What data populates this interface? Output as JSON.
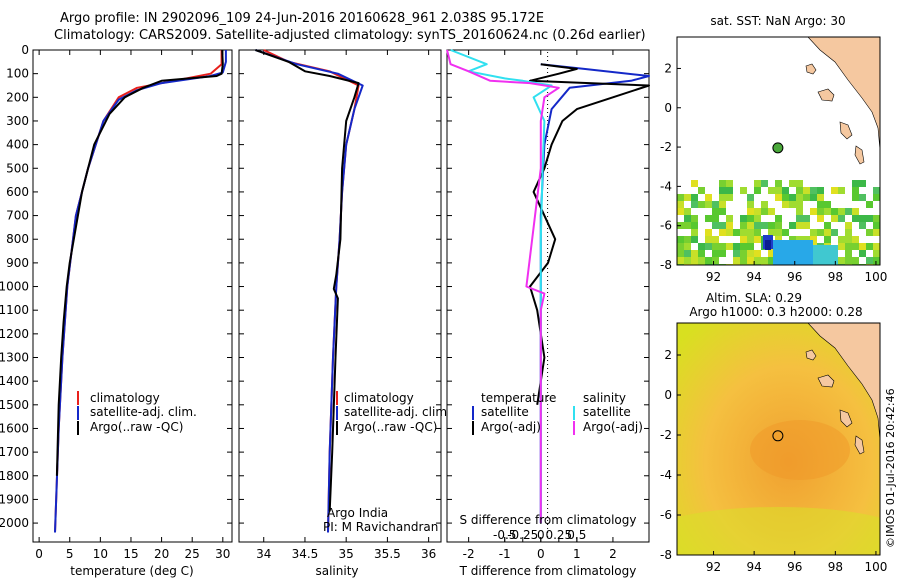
{
  "header": {
    "line1": "Argo profile: IN 2902096_109 24-Jun-2016 20160628_961 2.038S 95.172E",
    "line2": "Climatology: CARS2009. Satellite-adjusted climatology: synTS_20160624.nc (0.26d earlier)"
  },
  "footer_credit": "©IMOS 01-Jul-2016 20:42:46",
  "colors": {
    "climatology": "#e8201c",
    "satellite": "#1428c8",
    "argo": "#000000",
    "sal_satellite": "#30e0f0",
    "sal_argo": "#f030f0",
    "land": "#f5c8a0",
    "ocean_blank": "#ffffff"
  },
  "chart_data": [
    {
      "id": "temperature",
      "type": "line",
      "xlabel": "temperature (deg C)",
      "ylabel": "",
      "xlim": [
        -1,
        31.5
      ],
      "ylim": [
        2080,
        0
      ],
      "xticks": [
        0,
        5,
        10,
        15,
        20,
        25,
        30
      ],
      "yticks": [
        0,
        100,
        200,
        300,
        400,
        500,
        600,
        700,
        800,
        900,
        1000,
        1100,
        1200,
        1300,
        1400,
        1500,
        1600,
        1700,
        1800,
        1900,
        2000
      ],
      "legend": [
        "climatology",
        "satellite-adj. clim.",
        "Argo(..raw -QC)"
      ],
      "series": [
        {
          "name": "climatology",
          "color": "climatology",
          "x": [
            29.8,
            29.8,
            28,
            22,
            16,
            13,
            10.5,
            8,
            6,
            4.6,
            3.8,
            3.2,
            2.6
          ],
          "y": [
            0,
            60,
            100,
            130,
            160,
            200,
            300,
            500,
            700,
            1000,
            1300,
            1600,
            2040
          ]
        },
        {
          "name": "satellite-adj. clim.",
          "color": "satellite",
          "x": [
            30.5,
            30.5,
            30,
            28,
            20,
            16,
            13,
            10.5,
            8,
            6,
            4.6,
            3.8,
            3.2,
            2.6
          ],
          "y": [
            0,
            50,
            95,
            110,
            140,
            170,
            210,
            300,
            500,
            700,
            1000,
            1300,
            1600,
            2040
          ]
        },
        {
          "name": "Argo(..raw -QC)",
          "color": "argo",
          "x": [
            29.9,
            30,
            29.8,
            29,
            20,
            17,
            14,
            11.5,
            9,
            7,
            5,
            4.5,
            4,
            3.6,
            3.2,
            2.9
          ],
          "y": [
            0,
            60,
            100,
            110,
            130,
            160,
            200,
            270,
            400,
            600,
            900,
            1000,
            1150,
            1300,
            1500,
            1800
          ]
        }
      ]
    },
    {
      "id": "salinity",
      "type": "line",
      "xlabel": "salinity",
      "ylabel": "",
      "xlim": [
        33.7,
        36.15
      ],
      "ylim": [
        2080,
        0
      ],
      "xticks": [
        34,
        34.5,
        35,
        35.5,
        36
      ],
      "legend": [
        "climatology",
        "satellite-adj. clim.",
        "Argo(..raw -QC)"
      ],
      "annotations": [
        "Argo India",
        "PI: M Ravichandran"
      ],
      "series": [
        {
          "name": "climatology",
          "color": "climatology",
          "x": [
            34.0,
            34.3,
            34.8,
            35.15,
            35.1,
            35.0,
            34.95,
            34.92,
            34.88,
            34.84,
            34.8,
            34.78
          ],
          "y": [
            0,
            50,
            90,
            150,
            250,
            400,
            600,
            800,
            1000,
            1300,
            1700,
            2040
          ]
        },
        {
          "name": "satellite-adj. clim.",
          "color": "satellite",
          "x": [
            33.9,
            34.4,
            34.9,
            35.2,
            35.1,
            35.0,
            34.95,
            34.92,
            34.88,
            34.84,
            34.8,
            34.78
          ],
          "y": [
            0,
            60,
            100,
            150,
            250,
            400,
            600,
            800,
            1000,
            1300,
            1700,
            2040
          ]
        },
        {
          "name": "Argo(..raw -QC)",
          "color": "argo",
          "x": [
            33.9,
            34.3,
            34.5,
            34.8,
            35.15,
            35.1,
            35.0,
            34.95,
            34.93,
            34.88,
            34.85,
            34.9,
            34.87,
            34.83,
            34.8
          ],
          "y": [
            0,
            50,
            90,
            110,
            140,
            200,
            300,
            500,
            800,
            950,
            1010,
            1050,
            1300,
            1700,
            1950
          ]
        }
      ]
    },
    {
      "id": "difference",
      "type": "line",
      "xlabel": "T difference from climatology",
      "xlabel_top": "S difference from climatology",
      "ylabel": "",
      "xlim": [
        -2.6,
        3
      ],
      "ylim": [
        2080,
        0
      ],
      "xticks": [
        -2,
        -1,
        0,
        1,
        2
      ],
      "top_ticks": [
        "-0.5",
        "-0.25",
        "0",
        "0.25",
        "0.5"
      ],
      "legend": {
        "temperature": "temperature",
        "t_sat": "satellite",
        "t_argo": "Argo(-adj)",
        "salinity": "salinity",
        "s_sat": "satellite",
        "s_argo": "Argo(-adj)"
      },
      "series": [
        {
          "name": "satellite",
          "color": "satellite",
          "x": [
            0,
            1.2,
            3,
            2.5,
            0.8,
            0.3,
            0.1,
            0,
            0,
            0
          ],
          "y": [
            60,
            80,
            110,
            130,
            160,
            250,
            400,
            700,
            1200,
            2000
          ]
        },
        {
          "name": "Argo(-adj)",
          "color": "argo",
          "x": [
            0,
            0.5,
            1.0,
            0.5,
            -0.3,
            3.0,
            2.0,
            1.0,
            0.6,
            0.3,
            0.1,
            -0.2,
            0.1,
            0.4,
            0.2,
            -0.3,
            -0.1,
            0.1,
            -0.1
          ],
          "y": [
            60,
            70,
            80,
            100,
            130,
            150,
            200,
            250,
            300,
            400,
            500,
            600,
            700,
            800,
            900,
            1000,
            1100,
            1300,
            1500
          ]
        },
        {
          "name": "satellite",
          "color": "sal_satellite",
          "x": [
            -2.5,
            -1.5,
            -2,
            -1,
            -0.5,
            0.3,
            -0.2,
            0.1,
            0.05,
            0,
            0,
            0
          ],
          "y": [
            0,
            60,
            90,
            120,
            130,
            150,
            200,
            300,
            500,
            800,
            1200,
            2000
          ]
        },
        {
          "name": "Argo(-adj)",
          "color": "sal_argo",
          "x": [
            -2.6,
            -2.5,
            -2,
            -1.4,
            -0.3,
            0.5,
            0.1,
            0,
            0,
            -0.4,
            0.1,
            0,
            0
          ],
          "y": [
            0,
            60,
            90,
            130,
            140,
            160,
            200,
            300,
            500,
            1000,
            1030,
            1100,
            2000
          ]
        }
      ]
    },
    {
      "id": "sst_map",
      "type": "heatmap",
      "title": "sat. SST: NaN Argo: 30",
      "xlim": [
        90.2,
        100.2
      ],
      "ylim": [
        -8,
        3.6
      ],
      "xticks": [
        92,
        94,
        96,
        98,
        100
      ],
      "yticks": [
        2,
        0,
        -2,
        -4,
        -6,
        -8
      ],
      "argo_point": [
        95.17,
        -2.04
      ]
    },
    {
      "id": "sla_map",
      "type": "heatmap",
      "title_lines": [
        "Altim. SLA: 0.29",
        "Argo h1000: 0.3 h2000: 0.28"
      ],
      "xlim": [
        90.2,
        100.2
      ],
      "ylim": [
        -8,
        3.6
      ],
      "xticks": [
        92,
        94,
        96,
        98,
        100
      ],
      "yticks": [
        2,
        0,
        -2,
        -4,
        -6,
        -8
      ],
      "argo_point": [
        95.17,
        -2.04
      ]
    }
  ]
}
